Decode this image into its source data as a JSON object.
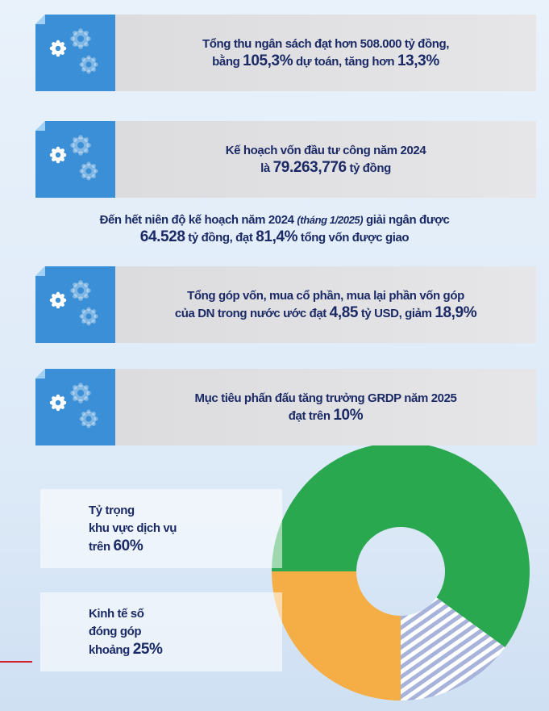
{
  "panels": [
    {
      "lines": [
        [
          {
            "t": "Tổng thu ngân sách đạt hơn 508.000 tỷ đồng,"
          }
        ],
        [
          {
            "t": "bằng "
          },
          {
            "t": "105,3%",
            "big": true
          },
          {
            "t": " dự toán, tăng hơn "
          },
          {
            "t": "13,3%",
            "big": true
          }
        ]
      ]
    },
    {
      "lines": [
        [
          {
            "t": "Kế hoạch vốn đầu tư công năm 2024"
          }
        ],
        [
          {
            "t": "là "
          },
          {
            "t": "79.263,776",
            "big": true
          },
          {
            "t": " tỷ đồng"
          }
        ]
      ]
    },
    {
      "lines": [
        [
          {
            "t": "Tổng góp vốn, mua cổ phần, mua lại phần vốn góp"
          }
        ],
        [
          {
            "t": "của DN trong nước ước đạt "
          },
          {
            "t": "4,85",
            "big": true
          },
          {
            "t": " tỷ USD, giảm "
          },
          {
            "t": "18,9%",
            "big": true
          }
        ]
      ]
    },
    {
      "lines": [
        [
          {
            "t": "Mục tiêu phấn đấu tăng trưởng GRDP năm 2025"
          }
        ],
        [
          {
            "t": "đạt trên "
          },
          {
            "t": "10%",
            "big": true
          }
        ]
      ]
    }
  ],
  "note": {
    "lines": [
      [
        {
          "t": "Đến hết niên độ kế hoạch năm 2024 "
        },
        {
          "t": "(tháng 1/2025)",
          "italic": true
        },
        {
          "t": " giải ngân được"
        }
      ],
      [
        {
          "t": "64.528",
          "big": true
        },
        {
          "t": " tỷ đồng, đạt "
        },
        {
          "t": "81,4%",
          "big": true
        },
        {
          "t": " tổng vốn được giao"
        }
      ]
    ]
  },
  "donut": {
    "segments": [
      {
        "value": 60,
        "color": "#2aa84f"
      },
      {
        "value": 15,
        "color": "#a7b3da",
        "striped": true
      },
      {
        "value": 25,
        "color": "#f5ad45"
      }
    ],
    "labels": [
      {
        "lines": [
          [
            {
              "t": "Tỷ trọng"
            }
          ],
          [
            {
              "t": "khu vực dịch vụ"
            }
          ],
          [
            {
              "t": "trên "
            },
            {
              "t": "60%",
              "big": true
            }
          ]
        ]
      },
      {
        "lines": [
          [
            {
              "t": "Kinh tế số"
            }
          ],
          [
            {
              "t": "đóng góp"
            }
          ],
          [
            {
              "t": "khoảng "
            },
            {
              "t": "25%",
              "big": true
            }
          ]
        ]
      }
    ]
  }
}
